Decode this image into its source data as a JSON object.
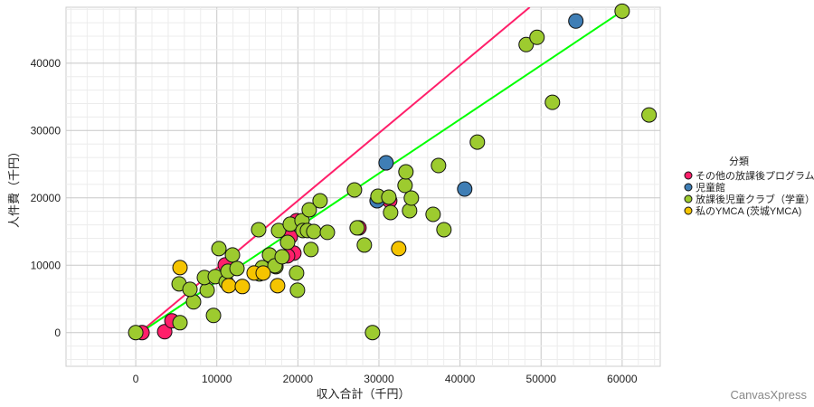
{
  "chart_data": {
    "type": "scatter",
    "title": "",
    "xlabel": "収入合計（千円）",
    "ylabel": "人件費（千円）",
    "xlim": [
      -8600,
      64700
    ],
    "ylim": [
      -5000,
      48300
    ],
    "xticks": [
      0,
      10000,
      20000,
      30000,
      40000,
      50000,
      60000
    ],
    "yticks": [
      0,
      10000,
      20000,
      30000,
      40000
    ],
    "grid": true,
    "legend": {
      "title": "分類",
      "position": "right"
    },
    "series": [
      {
        "name": "その他の放課後プログラム",
        "color": "#FF1F6A",
        "points": [
          [
            780,
            0
          ],
          [
            3570,
            130
          ],
          [
            4460,
            1740
          ],
          [
            11040,
            10050
          ],
          [
            19840,
            16620
          ],
          [
            19510,
            11800
          ],
          [
            18730,
            11390
          ],
          [
            19060,
            14210
          ],
          [
            27540,
            15550
          ],
          [
            31330,
            19570
          ]
        ]
      },
      {
        "name": "児童館",
        "color": "#3F7EB5",
        "points": [
          [
            29770,
            19570
          ],
          [
            30880,
            25200
          ],
          [
            40580,
            21310
          ],
          [
            54290,
            46250
          ]
        ]
      },
      {
        "name": "放課後児童クラブ（学童）",
        "color": "#9DCB2F",
        "points": [
          [
            0,
            0
          ],
          [
            5460,
            1470
          ],
          [
            9590,
            2550
          ],
          [
            7130,
            4560
          ],
          [
            5350,
            7240
          ],
          [
            8810,
            6300
          ],
          [
            6690,
            6430
          ],
          [
            8470,
            8180
          ],
          [
            9810,
            8310
          ],
          [
            11150,
            7500
          ],
          [
            11370,
            9110
          ],
          [
            12490,
            9520
          ],
          [
            11930,
            11530
          ],
          [
            10260,
            12470
          ],
          [
            15270,
            8710
          ],
          [
            15610,
            9650
          ],
          [
            17290,
            9790
          ],
          [
            16500,
            11530
          ],
          [
            17170,
            9920
          ],
          [
            18060,
            11260
          ],
          [
            18730,
            13400
          ],
          [
            19840,
            8850
          ],
          [
            19950,
            6300
          ],
          [
            21620,
            12330
          ],
          [
            15160,
            15280
          ],
          [
            17620,
            15150
          ],
          [
            19060,
            16090
          ],
          [
            20510,
            16620
          ],
          [
            21400,
            18230
          ],
          [
            22740,
            19570
          ],
          [
            20620,
            15150
          ],
          [
            21180,
            15150
          ],
          [
            21960,
            15010
          ],
          [
            23640,
            14880
          ],
          [
            26980,
            21180
          ],
          [
            27310,
            15550
          ],
          [
            28200,
            13000
          ],
          [
            29210,
            0
          ],
          [
            29880,
            20240
          ],
          [
            31220,
            20110
          ],
          [
            31440,
            17830
          ],
          [
            33220,
            21850
          ],
          [
            33330,
            23860
          ],
          [
            33780,
            18100
          ],
          [
            34000,
            19970
          ],
          [
            36680,
            17560
          ],
          [
            37350,
            24800
          ],
          [
            38020,
            15280
          ],
          [
            42140,
            28280
          ],
          [
            48160,
            42760
          ],
          [
            49500,
            43830
          ],
          [
            51400,
            34180
          ],
          [
            60000,
            47720
          ],
          [
            63320,
            32310
          ]
        ]
      },
      {
        "name": "私のYMCA (茨城YMCA)",
        "color": "#F5C400",
        "points": [
          [
            5460,
            9650
          ],
          [
            11480,
            6970
          ],
          [
            13150,
            6840
          ],
          [
            14600,
            8850
          ],
          [
            15720,
            8850
          ],
          [
            17500,
            6970
          ],
          [
            32440,
            12470
          ]
        ]
      }
    ],
    "fit_lines": [
      {
        "series": "その他の放課後プログラム",
        "color": "#FF1F6A",
        "from": [
          500,
          0
        ],
        "to": [
          48600,
          48300
        ]
      },
      {
        "series": "放課後児童クラブ（学童）",
        "color": "#00FF00",
        "from": [
          560,
          0
        ],
        "to": [
          60000,
          47720
        ]
      }
    ]
  },
  "watermark": "CanvasXpress"
}
